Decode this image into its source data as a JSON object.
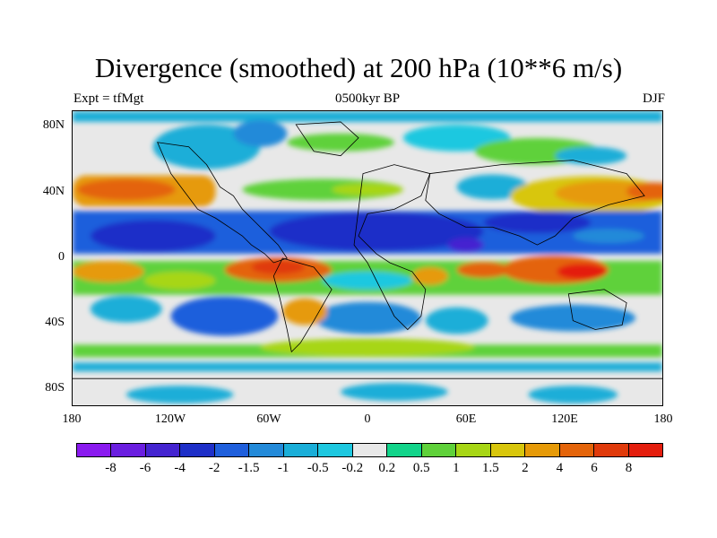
{
  "title": "Divergence (smoothed) at 200 hPa (10**6 m/s)",
  "subtitle_left": "Expt = tfMgt",
  "subtitle_center": "0500kyr BP",
  "subtitle_right": "DJF",
  "lat_ticks": [
    "80N",
    "40N",
    "0",
    "40S",
    "80S"
  ],
  "lon_ticks": [
    "180",
    "120W",
    "60W",
    "0",
    "60E",
    "120E",
    "180"
  ],
  "colorbar": {
    "colors": [
      "#8a1aef",
      "#6a1ee0",
      "#4424d0",
      "#1e2fc8",
      "#1f5fdc",
      "#238ad9",
      "#1aaed8",
      "#1ec8e0",
      "#e8e8e8",
      "#12d48a",
      "#5fd13a",
      "#a7d615",
      "#d8c60c",
      "#e69a08",
      "#e4640a",
      "#e03a0b",
      "#e41e0e"
    ],
    "labels": [
      "-8",
      "-6",
      "-4",
      "-2",
      "-1.5",
      "-1",
      "-0.5",
      "-0.2",
      "0.2",
      "0.5",
      "1",
      "1.5",
      "2",
      "4",
      "6",
      "8"
    ]
  }
}
